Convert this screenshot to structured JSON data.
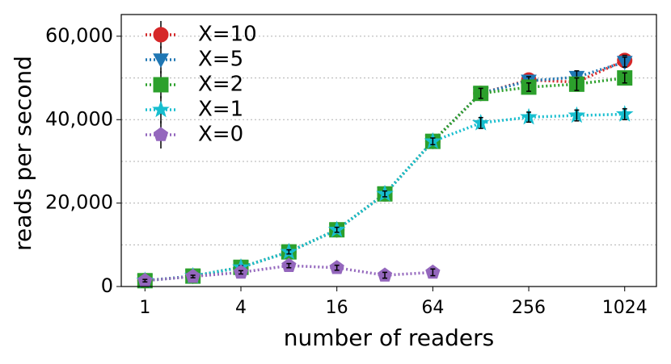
{
  "chart_data": {
    "type": "line",
    "xlabel": "number of readers",
    "ylabel": "reads per second",
    "x": [
      1,
      2,
      4,
      8,
      16,
      32,
      64,
      128,
      256,
      512,
      1024
    ],
    "xscale": "log2",
    "xlim": [
      0.71,
      1620
    ],
    "xticks": [
      1,
      4,
      16,
      64,
      256,
      1024
    ],
    "ylim": [
      0,
      65200
    ],
    "yticks": [
      {
        "value": 0,
        "label": "0"
      },
      {
        "value": 20000,
        "label": "20,000"
      },
      {
        "value": 40000,
        "label": "40,000"
      },
      {
        "value": 60000,
        "label": "60,000"
      }
    ],
    "yminorticks": [
      10000,
      30000,
      50000
    ],
    "grid": true,
    "legend": "upper left",
    "series": [
      {
        "name": "X=10",
        "color": "#d62728",
        "marker": "circle",
        "values": [
          1400,
          2500,
          4600,
          8300,
          13600,
          22200,
          34800,
          46300,
          49500,
          49000,
          54200
        ],
        "errors": [
          300,
          300,
          400,
          500,
          600,
          700,
          800,
          1200,
          1000,
          1500,
          1200
        ]
      },
      {
        "name": "X=5",
        "color": "#1f77b4",
        "marker": "triangle-down",
        "values": [
          1400,
          2500,
          4600,
          8300,
          13600,
          22200,
          34800,
          46300,
          49300,
          50200,
          53800
        ],
        "errors": [
          300,
          300,
          400,
          500,
          600,
          700,
          800,
          1200,
          1000,
          1500,
          1200
        ]
      },
      {
        "name": "X=2",
        "color": "#2ca02c",
        "marker": "square",
        "values": [
          1400,
          2500,
          4600,
          8300,
          13600,
          22200,
          34800,
          46300,
          47800,
          48500,
          50000
        ],
        "errors": [
          300,
          300,
          400,
          500,
          600,
          700,
          800,
          1200,
          1000,
          1500,
          1200
        ]
      },
      {
        "name": "X=1",
        "color": "#17becf",
        "marker": "star",
        "values": [
          1400,
          2500,
          4600,
          8300,
          13600,
          22200,
          34800,
          39200,
          40600,
          41000,
          41300
        ],
        "errors": [
          300,
          300,
          400,
          500,
          600,
          700,
          800,
          1300,
          1200,
          1300,
          1300
        ]
      },
      {
        "name": "X=0",
        "color": "#9467bd",
        "marker": "pentagon",
        "values": [
          1400,
          2400,
          3400,
          5000,
          4500,
          2700,
          3400,
          null,
          null,
          null,
          null
        ],
        "errors": [
          300,
          300,
          400,
          500,
          600,
          700,
          800,
          null,
          null,
          null,
          null
        ]
      }
    ]
  }
}
